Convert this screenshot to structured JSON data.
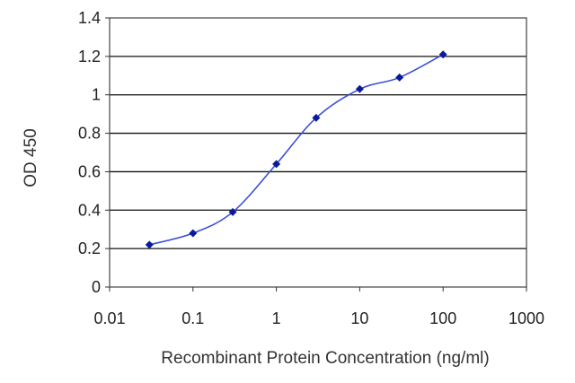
{
  "chart_data": {
    "type": "line",
    "title": "",
    "xlabel": "Recombinant Protein Concentration (ng/ml)",
    "ylabel": "OD 450",
    "x_scale": "log",
    "xlim": [
      0.01,
      1000
    ],
    "ylim": [
      0,
      1.4
    ],
    "x_ticks": [
      "0.01",
      "0.1",
      "1",
      "10",
      "100",
      "1000"
    ],
    "y_ticks": [
      "0",
      "0.2",
      "0.4",
      "0.6",
      "0.8",
      "1",
      "1.2",
      "1.4"
    ],
    "grid": "horizontal",
    "colors": {
      "line": "#3b4fd8",
      "marker": "#0a1a9a"
    },
    "series": [
      {
        "x": [
          0.03,
          0.1,
          0.3,
          1,
          3,
          10,
          30,
          100
        ],
        "y": [
          0.22,
          0.28,
          0.39,
          0.64,
          0.88,
          1.03,
          1.09,
          1.21
        ]
      }
    ]
  }
}
